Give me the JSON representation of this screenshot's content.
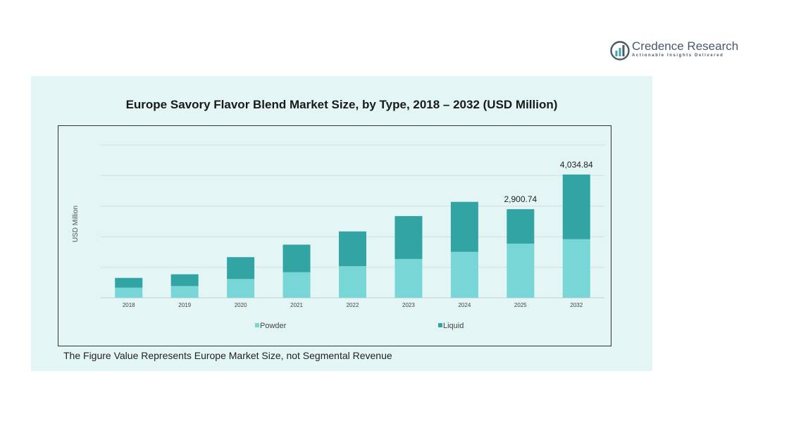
{
  "brand": {
    "name": "Credence Research",
    "tagline": "Actionable Insights Delivered",
    "colors": {
      "logo_dark": "#4a5968",
      "logo_teal": "#3aa3b0"
    }
  },
  "footnote": "The Figure Value Represents Europe Market Size, not Segmental Revenue",
  "chart_data": {
    "type": "bar",
    "stacked": true,
    "title": "Europe Savory Flavor Blend Market Size, by Type, 2018 – 2032 (USD Million)",
    "xlabel": "",
    "ylabel": "USD Million",
    "categories": [
      "2018",
      "2019",
      "2020",
      "2021",
      "2022",
      "2023",
      "2024",
      "2025",
      "2032"
    ],
    "series": [
      {
        "name": "Powder",
        "color": "#78d6d6",
        "values": [
          334,
          384,
          615,
          836,
          1037,
          1270,
          1503,
          1772,
          1917
        ]
      },
      {
        "name": "Liquid",
        "color": "#33a4a4",
        "values": [
          317,
          385,
          716,
          903,
          1135,
          1405,
          1637,
          1129,
          2118
        ]
      }
    ],
    "totals_labels": [
      {
        "category": "2025",
        "text": "2,900.74"
      },
      {
        "category": "2032",
        "text": "4,034.84"
      }
    ],
    "ylim": [
      0,
      5000
    ],
    "grid": true,
    "legend": "bottom"
  }
}
